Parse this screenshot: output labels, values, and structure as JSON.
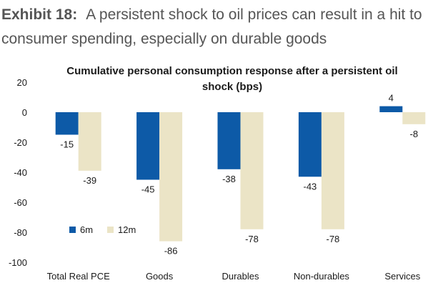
{
  "exhibit": {
    "label": "Exhibit 18:",
    "title": "A persistent shock to oil prices can result in a hit to consumer spending, especially on durable goods"
  },
  "chart_data": {
    "type": "bar",
    "title": "Cumulative personal consumption response after a persistent oil shock (bps)",
    "title_lines": [
      "Cumulative personal consumption response after a persistent oil",
      "shock (bps)"
    ],
    "categories": [
      "Total Real PCE",
      "Goods",
      "Durables",
      "Non-durables",
      "Services"
    ],
    "series": [
      {
        "name": "6m",
        "color": "#0d5aa7",
        "values": [
          -15,
          -45,
          -38,
          -43,
          4
        ]
      },
      {
        "name": "12m",
        "color": "#ebe4c6",
        "values": [
          -39,
          -86,
          -78,
          -78,
          -8
        ]
      }
    ],
    "ylim": [
      -100,
      20
    ],
    "yticks": [
      20,
      0,
      -20,
      -40,
      -60,
      -80,
      -100
    ],
    "xlabel": "",
    "ylabel": "",
    "grid": false,
    "legend": {
      "position": "bottom-left",
      "items": [
        "6m",
        "12m"
      ]
    }
  }
}
